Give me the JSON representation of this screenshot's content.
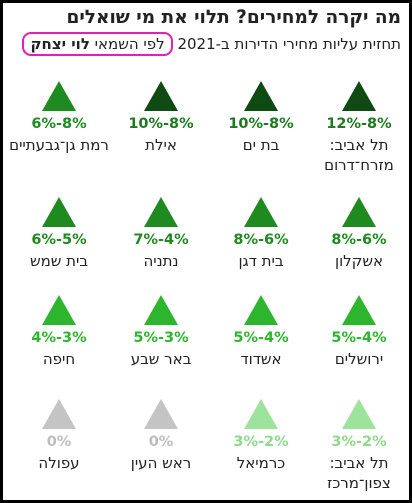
{
  "title": "מה יקרה למחירים? תלוי את מי שואלים",
  "subtitle": {
    "prefix": "תחזית עליות מחירי הדירות ב-2021",
    "highlight_lead": "לפי השמאי ",
    "highlight_name": "לוי יצחק"
  },
  "colors": {
    "dark": "#0e4a12",
    "mid": "#1e8a20",
    "bright": "#2db52d",
    "light": "#9ee39b",
    "gray": "#c4c4c4",
    "highlight_border": "#e020b8"
  },
  "cities": [
    {
      "name": "תל אביב: מזרח־דרום",
      "value": "12%-8%",
      "shade": "dark"
    },
    {
      "name": "בת ים",
      "value": "10%-8%",
      "shade": "dark"
    },
    {
      "name": "אילת",
      "value": "10%-8%",
      "shade": "dark"
    },
    {
      "name": "רמת גן־גבעתיים",
      "value": "6%-8%",
      "shade": "mid"
    },
    {
      "name": "אשקלון",
      "value": "8%-6%",
      "shade": "mid"
    },
    {
      "name": "בית דגן",
      "value": "8%-6%",
      "shade": "mid"
    },
    {
      "name": "נתניה",
      "value": "7%-4%",
      "shade": "mid"
    },
    {
      "name": "בית שמש",
      "value": "6%-5%",
      "shade": "mid"
    },
    {
      "name": "ירושלים",
      "value": "5%-4%",
      "shade": "bright"
    },
    {
      "name": "אשדוד",
      "value": "5%-4%",
      "shade": "bright"
    },
    {
      "name": "באר שבע",
      "value": "5%-3%",
      "shade": "bright"
    },
    {
      "name": "חיפה",
      "value": "4%-3%",
      "shade": "bright"
    },
    {
      "name": "תל אביב: צפון־מרכז",
      "value": "3%-2%",
      "shade": "light"
    },
    {
      "name": "כרמיאל",
      "value": "3%-2%",
      "shade": "light"
    },
    {
      "name": "ראש העין",
      "value": "0%",
      "shade": "gray"
    },
    {
      "name": "עפולה",
      "value": "0%",
      "shade": "gray"
    }
  ]
}
